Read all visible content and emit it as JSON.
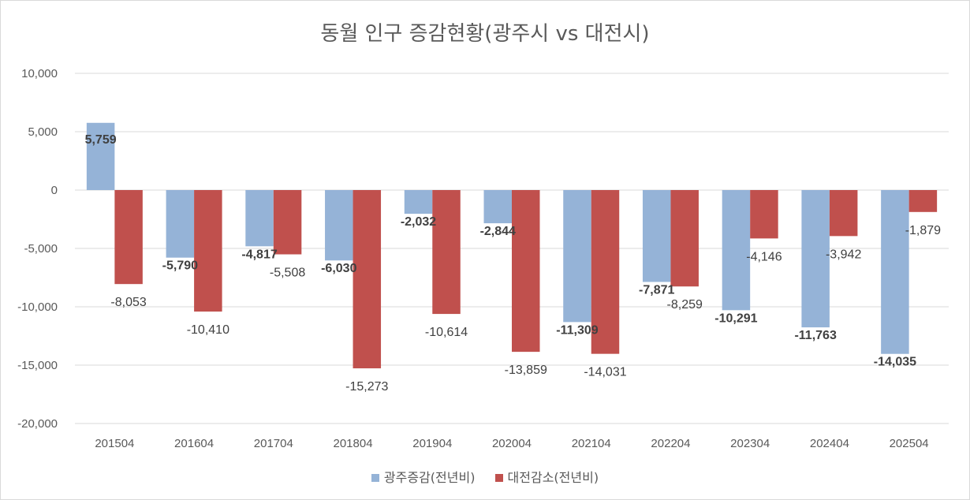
{
  "chart_data": {
    "type": "bar",
    "title": "동월 인구 증감현황(광주시 vs 대전시)",
    "categories": [
      "201504",
      "201604",
      "201704",
      "201804",
      "201904",
      "202004",
      "202104",
      "202204",
      "202304",
      "202404",
      "202504"
    ],
    "series": [
      {
        "name": "광주증감(전년비)",
        "color": "#95B3D7",
        "values": [
          5759,
          -5790,
          -4817,
          -6030,
          -2032,
          -2844,
          -11309,
          -7871,
          -10291,
          -11763,
          -14035
        ],
        "labels": [
          "5,759",
          "-5,790",
          "-4,817",
          "-6,030",
          "-2,032",
          "-2,844",
          "-11,309",
          "-7,871",
          "-10,291",
          "-11,763",
          "-14,035"
        ]
      },
      {
        "name": "대전감소(전년비)",
        "color": "#C0504D",
        "values": [
          -8053,
          -10410,
          -5508,
          -15273,
          -10614,
          -13859,
          -14031,
          -8259,
          -4146,
          -3942,
          -1879
        ],
        "labels": [
          "-8,053",
          "-10,410",
          "-5,508",
          "-15,273",
          "-10,614",
          "-13,859",
          "-14,031",
          "-8,259",
          "-4,146",
          "-3,942",
          "-1,879"
        ]
      }
    ],
    "ylim": [
      -20000,
      10000
    ],
    "yticks": [
      10000,
      5000,
      0,
      -5000,
      -10000,
      -15000,
      -20000
    ],
    "ytick_labels": [
      "10,000",
      "5,000",
      "0",
      "-5,000",
      "-10,000",
      "-15,000",
      "-20,000"
    ],
    "grid": true,
    "legend": "bottom"
  }
}
